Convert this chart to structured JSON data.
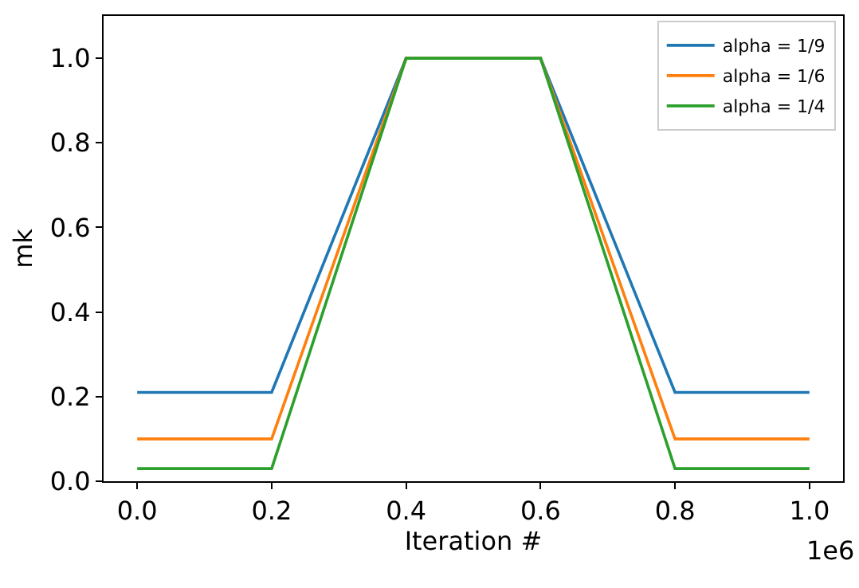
{
  "chart_data": {
    "type": "line",
    "xlabel": "Iteration #",
    "ylabel": "mk",
    "x": [
      0,
      0.2,
      0.4,
      0.6,
      0.8,
      1.0
    ],
    "series": [
      {
        "name": "alpha = 1/9",
        "color": "#1f77b4",
        "values": [
          0.21,
          0.21,
          1.0,
          1.0,
          0.21,
          0.21
        ]
      },
      {
        "name": "alpha = 1/6",
        "color": "#ff7f0e",
        "values": [
          0.1,
          0.1,
          1.0,
          1.0,
          0.1,
          0.1
        ]
      },
      {
        "name": "alpha = 1/4",
        "color": "#2ca02c",
        "values": [
          0.03,
          0.03,
          1.0,
          1.0,
          0.03,
          0.03
        ]
      }
    ],
    "xlim": [
      -0.05,
      1.05
    ],
    "xticks": [
      {
        "value": 0,
        "label": "0.0"
      },
      0.2,
      0.4,
      0.6,
      0.8,
      {
        "value": 1.0,
        "label": "1.0"
      }
    ],
    "ylim": [
      0,
      1.1
    ],
    "yticks": [
      {
        "value": 0,
        "label": "0.0"
      },
      {
        "value": 0.2,
        "label": "0.2"
      },
      {
        "value": 0.4,
        "label": "0.4"
      },
      {
        "value": 0.6,
        "label": "0.6"
      },
      {
        "value": 0.8,
        "label": "0.8"
      },
      {
        "value": 1.0,
        "label": "1.0"
      }
    ],
    "annotations": [
      "1e6"
    ],
    "legend": "top right",
    "marker": "none",
    "line_style": "solid"
  }
}
